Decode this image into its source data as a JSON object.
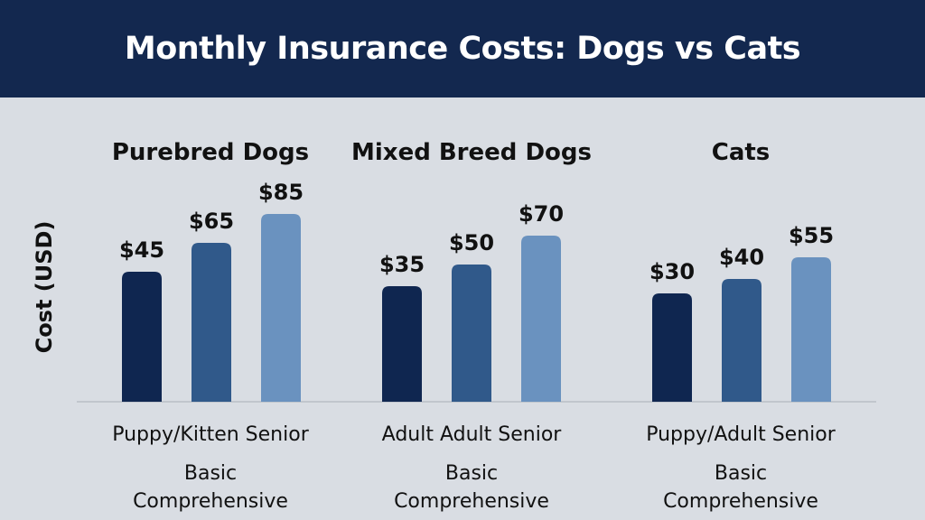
{
  "chart_data": {
    "type": "bar",
    "title": "Monthly Insurance Costs: Dogs vs Cats",
    "ylabel": "Cost (USD)",
    "xlabel": "",
    "grid": false,
    "groups": [
      {
        "name": "Purebred Dogs",
        "values": [
          45,
          65,
          85
        ],
        "value_labels": [
          "$45",
          "$65",
          "$85"
        ],
        "category_label": "Puppy/Kitten Senior",
        "sub_labels": [
          "Basic",
          "Comprehensive"
        ]
      },
      {
        "name": "Mixed Breed Dogs",
        "values": [
          35,
          50,
          70
        ],
        "value_labels": [
          "$35",
          "$50",
          "$70"
        ],
        "category_label": "Adult  Adult  Senior",
        "sub_labels": [
          "Basic",
          "Comprehensive"
        ]
      },
      {
        "name": "Cats",
        "values": [
          30,
          40,
          55
        ],
        "value_labels": [
          "$30",
          "$40",
          "$55"
        ],
        "category_label": "Puppy/Adult Senior",
        "sub_labels": [
          "Basic",
          "Comprehensive"
        ]
      }
    ],
    "colors": [
      "#0f2650",
      "#30598a",
      "#6a92bf"
    ]
  }
}
